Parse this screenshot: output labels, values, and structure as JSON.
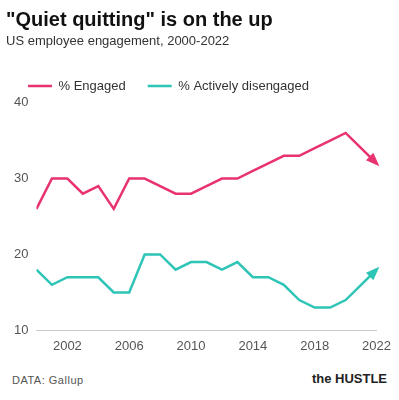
{
  "chart_data": {
    "type": "line",
    "title": "\"Quiet quitting\" is on the up",
    "subtitle": "US employee engagement, 2000-2022",
    "x": [
      2000,
      2001,
      2002,
      2003,
      2004,
      2005,
      2006,
      2007,
      2008,
      2009,
      2010,
      2011,
      2012,
      2013,
      2014,
      2015,
      2016,
      2017,
      2018,
      2019,
      2020,
      2021,
      2022
    ],
    "series": [
      {
        "name": "% Engaged",
        "color": "#e8336f",
        "values": [
          26,
          30,
          30,
          28,
          29,
          26,
          30,
          30,
          29,
          28,
          28,
          29,
          30,
          30,
          31,
          32,
          33,
          33,
          34,
          35,
          36,
          34,
          32
        ]
      },
      {
        "name": "% Actively disengaged",
        "color": "#2ec4b6",
        "values": [
          18,
          16,
          17,
          17,
          17,
          15,
          15,
          20,
          20,
          18,
          19,
          19,
          18,
          19,
          17,
          17,
          16,
          14,
          13,
          13,
          14,
          16,
          18
        ]
      }
    ],
    "xlim": [
      2000,
      2022
    ],
    "xticks": [
      2002,
      2006,
      2010,
      2014,
      2018,
      2022
    ],
    "ylim": [
      10,
      40
    ],
    "yticks": [
      10,
      20,
      30,
      40
    ],
    "grid": false,
    "legend": "top-left",
    "marker": "none",
    "source": "DATA: Gallup",
    "brand": "the HUSTLE"
  }
}
